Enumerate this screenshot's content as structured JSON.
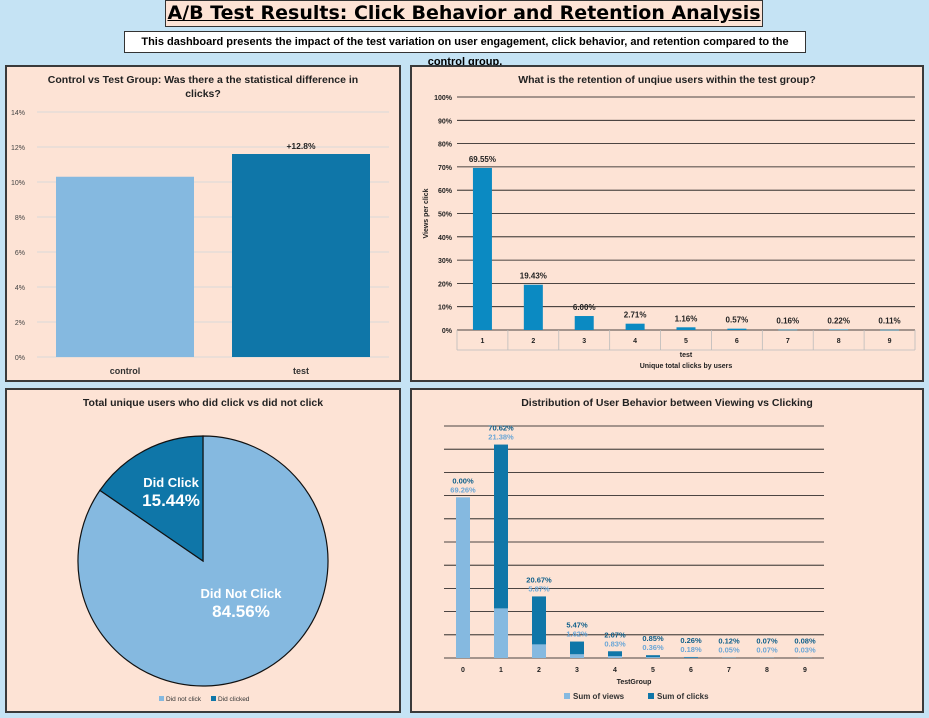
{
  "header": {
    "title": "A/B Test Results: Click Behavior and Retention Analysis",
    "subtitle": "This dashboard presents the impact of the test variation on user engagement, click behavior, and retention compared to the control group."
  },
  "colors": {
    "light_blue": "#85b9e0",
    "dark_blue": "#0f76a8",
    "mid_blue": "#0b8ac2",
    "panel_bg": "#fde3d5",
    "page_bg": "#c5e3f4"
  },
  "chart_data": [
    {
      "id": "control_vs_test",
      "type": "bar",
      "title": "Control vs Test Group: Was there a the statistical difference in clicks?",
      "title_lines": [
        "Control vs Test Group: Was there a the statistical difference in",
        "clicks?"
      ],
      "categories": [
        "control",
        "test"
      ],
      "values": [
        10.3,
        11.6
      ],
      "bar_colors": [
        "#85b9e0",
        "#0f76a8"
      ],
      "data_labels": [
        "",
        "+12.8%"
      ],
      "ylim": [
        0,
        14
      ],
      "yticks": [
        0,
        2,
        4,
        6,
        8,
        10,
        12,
        14
      ],
      "ytick_labels": [
        "0%",
        "2%",
        "4%",
        "6%",
        "8%",
        "10%",
        "12%",
        "14%"
      ],
      "grid": true
    },
    {
      "id": "retention",
      "type": "bar",
      "title": "What is the retention of unqiue users within the test group?",
      "categories": [
        "1",
        "2",
        "3",
        "4",
        "5",
        "6",
        "7",
        "8",
        "9"
      ],
      "values": [
        69.55,
        19.43,
        6.0,
        2.71,
        1.16,
        0.57,
        0.16,
        0.22,
        0.11
      ],
      "data_labels": [
        "69.55%",
        "19.43%",
        "6.00%",
        "2.71%",
        "1.16%",
        "0.57%",
        "0.16%",
        "0.22%",
        "0.11%"
      ],
      "ylim": [
        0,
        100
      ],
      "yticks": [
        0,
        10,
        20,
        30,
        40,
        50,
        60,
        70,
        80,
        90,
        100
      ],
      "ytick_labels": [
        "0%",
        "10%",
        "20%",
        "30%",
        "40%",
        "50%",
        "60%",
        "70%",
        "80%",
        "90%",
        "100%"
      ],
      "ylabel": "Views per click",
      "group_label": "test",
      "xlabel": "Unique total clicks by users",
      "grid": true
    },
    {
      "id": "click_pie",
      "type": "pie",
      "title": "Total unique users who did click vs did not click",
      "slices": [
        {
          "label": "Did Not Click",
          "value": 84.56,
          "value_label": "84.56%",
          "color": "#85b9e0"
        },
        {
          "label": "Did Click",
          "value": 15.44,
          "value_label": "15.44%",
          "color": "#0f76a8"
        }
      ],
      "legend": [
        "Did not click",
        "Did clicked"
      ],
      "legend_position": "bottom"
    },
    {
      "id": "view_vs_click",
      "type": "bar",
      "stacked": true,
      "title": "Distribution of User Behavior between Viewing vs Clicking",
      "categories": [
        "0",
        "1",
        "2",
        "3",
        "4",
        "5",
        "6",
        "7",
        "8",
        "9"
      ],
      "series": [
        {
          "name": "Sum of views",
          "values": [
            69.26,
            21.38,
            5.87,
            1.62,
            0.83,
            0.36,
            0.18,
            0.05,
            0.07,
            0.03
          ],
          "labels": [
            "69.26%",
            "21.38%",
            "5.87%",
            "1.62%",
            "0.83%",
            "0.36%",
            "0.18%",
            "0.05%",
            "0.07%",
            "0.03%"
          ]
        },
        {
          "name": "Sum of clicks",
          "values": [
            0.0,
            70.62,
            20.67,
            5.47,
            2.07,
            0.85,
            0.26,
            0.12,
            0.07,
            0.08
          ],
          "labels": [
            "0.00%",
            "70.62%",
            "20.67%",
            "5.47%",
            "2.07%",
            "0.85%",
            "0.26%",
            "0.12%",
            "0.07%",
            "0.08%"
          ]
        }
      ],
      "xlabel": "TestGroup",
      "legend_position": "bottom",
      "grid": true
    }
  ]
}
